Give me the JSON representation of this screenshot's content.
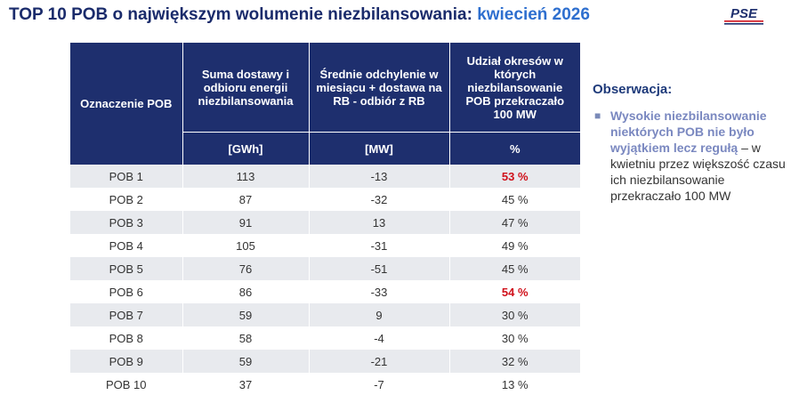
{
  "header": {
    "title_main": "TOP 10 POB o największym wolumenie niezbilansowania: ",
    "title_accent": "kwiecień 2026",
    "logo_text": "PSE"
  },
  "colors": {
    "title": "#1a2b6b",
    "accent": "#2e6fcf",
    "table_header": "#1e2f6e",
    "highlight": "#d0101a",
    "logo_red": "#d0101a",
    "logo_blue": "#1e2f6e"
  },
  "table": {
    "headers": [
      "Oznaczenie POB",
      "Suma dostawy i odbioru energii niezbilansowania",
      "Średnie odchylenie w miesiącu + dostawa na RB - odbiór z RB",
      "Udział okresów w których niezbilansowanie POB przekraczało 100 MW"
    ],
    "units": [
      "[GWh]",
      "[MW]",
      "%"
    ],
    "rows": [
      {
        "pob": "POB 1",
        "sum": "113",
        "avg": "-13",
        "share": "53 %",
        "highlight": true
      },
      {
        "pob": "POB 2",
        "sum": "87",
        "avg": "-32",
        "share": "45 %",
        "highlight": false
      },
      {
        "pob": "POB 3",
        "sum": "91",
        "avg": "13",
        "share": "47 %",
        "highlight": false
      },
      {
        "pob": "POB 4",
        "sum": "105",
        "avg": "-31",
        "share": "49 %",
        "highlight": false
      },
      {
        "pob": "POB 5",
        "sum": "76",
        "avg": "-51",
        "share": "45 %",
        "highlight": false
      },
      {
        "pob": "POB 6",
        "sum": "86",
        "avg": "-33",
        "share": "54 %",
        "highlight": true
      },
      {
        "pob": "POB 7",
        "sum": "59",
        "avg": "9",
        "share": "30 %",
        "highlight": false
      },
      {
        "pob": "POB 8",
        "sum": "58",
        "avg": "-4",
        "share": "30 %",
        "highlight": false
      },
      {
        "pob": "POB 9",
        "sum": "59",
        "avg": "-21",
        "share": "32 %",
        "highlight": false
      },
      {
        "pob": "POB 10",
        "sum": "37",
        "avg": "-7",
        "share": "13 %",
        "highlight": false
      }
    ]
  },
  "observation": {
    "title": "Obserwacja:",
    "bullet_icon": "square-bullet",
    "strong_text": "Wysokie niezbilansowanie niektórych POB nie było wyjątkiem lecz regułą",
    "normal_text": " – w kwietniu przez większość czasu ich niezbilansowanie przekraczało 100 MW"
  }
}
